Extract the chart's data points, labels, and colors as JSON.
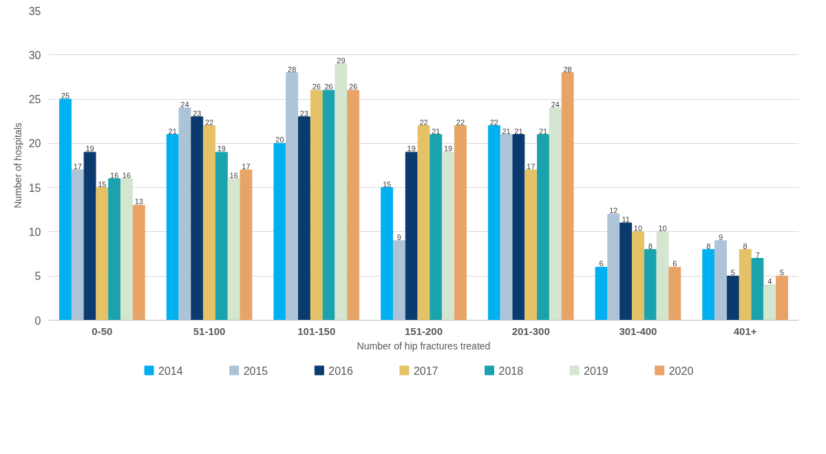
{
  "chart_data": {
    "type": "bar",
    "xlabel": "Number of hip fractures treated",
    "ylabel": "Number of hospitals",
    "categories": [
      "0-50",
      "51-100",
      "101-150",
      "151-200",
      "201-300",
      "301-400",
      "401+"
    ],
    "series": [
      {
        "name": "2014",
        "color": "#00b0f0",
        "values": [
          25,
          21,
          20,
          15,
          22,
          6,
          8
        ]
      },
      {
        "name": "2015",
        "color": "#adc4d8",
        "values": [
          17,
          24,
          28,
          9,
          21,
          12,
          9
        ]
      },
      {
        "name": "2016",
        "color": "#0b3a6e",
        "values": [
          19,
          23,
          23,
          19,
          21,
          11,
          5
        ]
      },
      {
        "name": "2017",
        "color": "#e5c266",
        "values": [
          15,
          22,
          26,
          22,
          17,
          10,
          8
        ]
      },
      {
        "name": "2018",
        "color": "#1aa3ad",
        "values": [
          16,
          19,
          26,
          21,
          21,
          8,
          7
        ]
      },
      {
        "name": "2019",
        "color": "#d4e6cf",
        "values": [
          16,
          16,
          29,
          19,
          24,
          10,
          4
        ]
      },
      {
        "name": "2020",
        "color": "#e8a466",
        "values": [
          13,
          17,
          26,
          22,
          28,
          6,
          5
        ]
      }
    ],
    "ylim": [
      0,
      35
    ],
    "yticks": [
      0,
      5,
      10,
      15,
      20,
      25,
      30,
      35
    ],
    "grid": "y",
    "legend": "bottom",
    "data_labels": true
  }
}
